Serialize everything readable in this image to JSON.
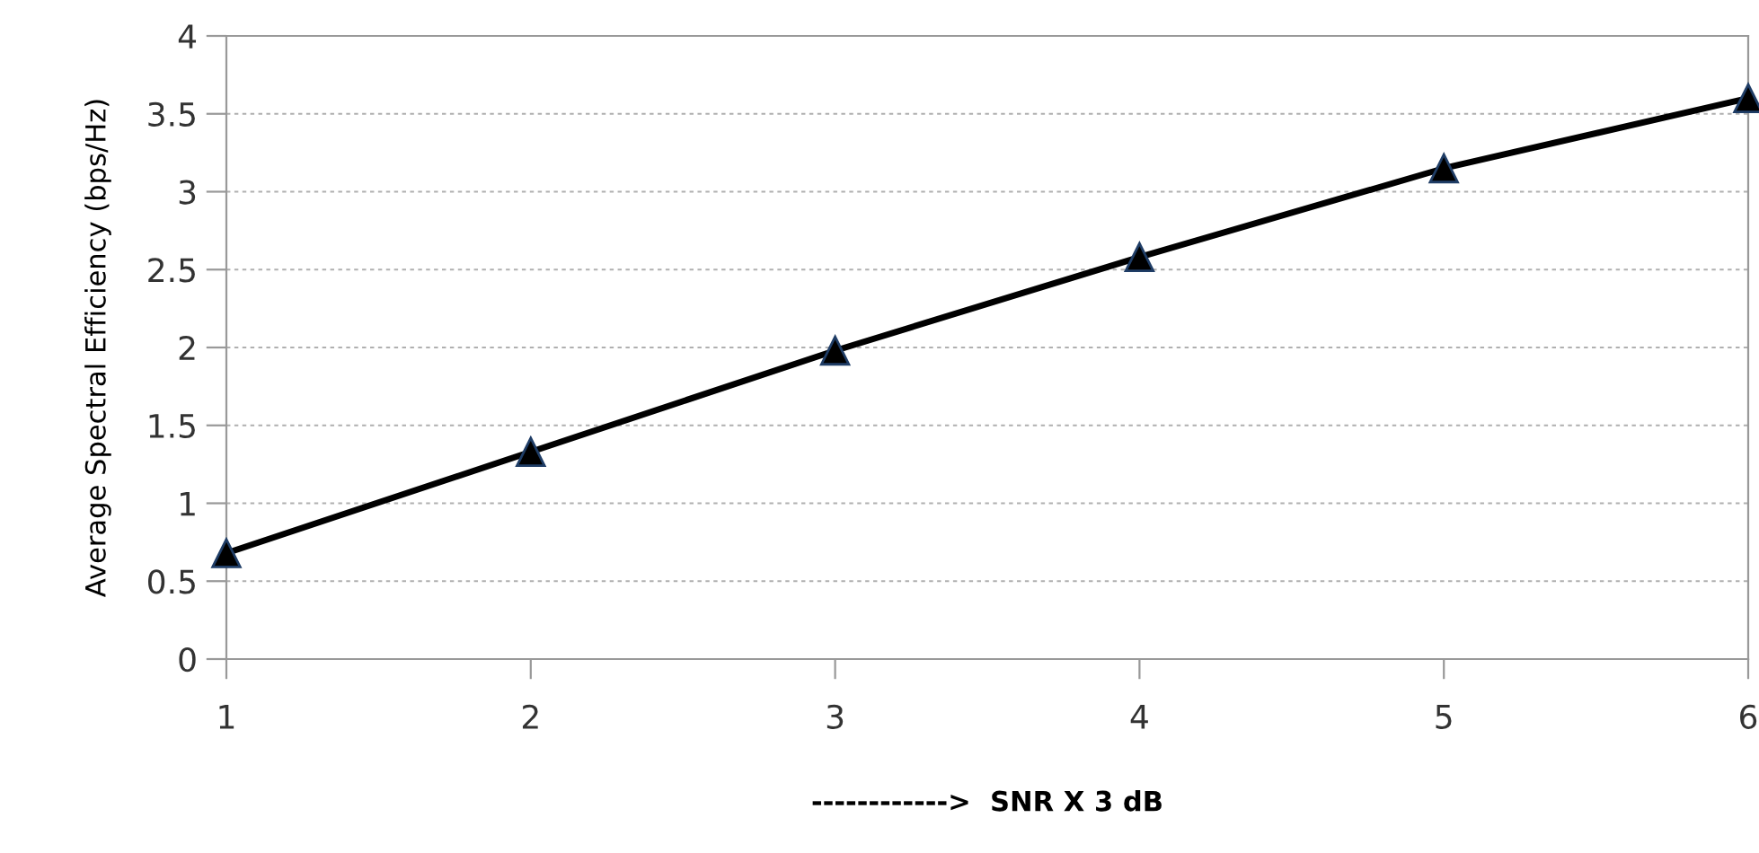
{
  "chart_data": {
    "type": "line",
    "xlabel": "------------>  SNR X 3 dB",
    "ylabel": "Average Spectral Efficiency (bps/Hz)",
    "x": [
      1,
      2,
      3,
      4,
      5,
      6
    ],
    "series": [
      {
        "color": "#000000",
        "values": [
          0.68,
          1.33,
          1.98,
          2.58,
          3.15,
          3.6
        ]
      }
    ],
    "xlim": [
      1,
      6
    ],
    "xticks": [
      1,
      2,
      3,
      4,
      5,
      6
    ],
    "ylim": [
      0,
      4
    ],
    "yticks": [
      0,
      0.5,
      1,
      1.5,
      2,
      2.5,
      3,
      3.5,
      4
    ],
    "grid": "y",
    "marker": "triangle",
    "line_style": "solid"
  }
}
